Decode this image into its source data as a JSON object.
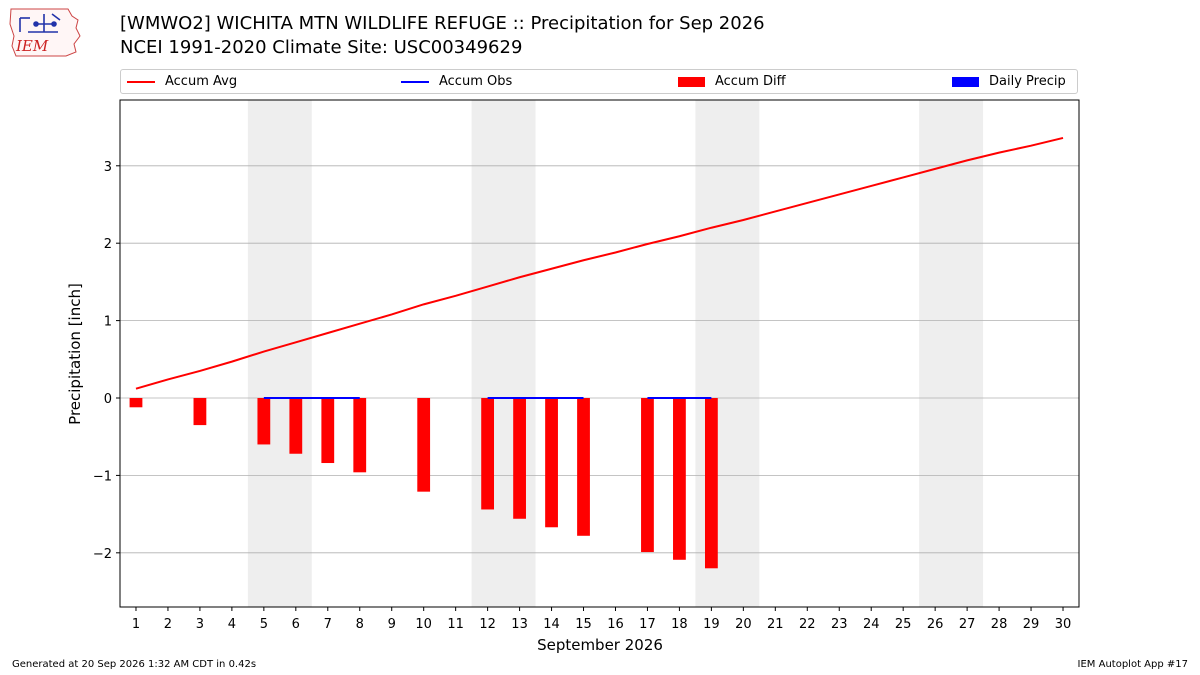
{
  "header": {
    "title_line1": "[WMWO2] WICHITA MTN WILDLIFE REFUGE :: Precipitation for Sep 2026",
    "title_line2": "NCEI 1991-2020 Climate Site: USC00349629"
  },
  "logo": {
    "text": "IEM",
    "icon": "iem-iowa-weather-logo"
  },
  "footer": {
    "generated": "Generated at 20 Sep 2026 1:32 AM CDT in 0.42s",
    "app": "IEM Autoplot App #17"
  },
  "colors": {
    "accum_avg": "#ff0000",
    "accum_obs": "#0000ff",
    "accum_diff": "#ff0000",
    "daily_precip": "#0000ff",
    "weekend_shade": "#eeeeee",
    "grid": "#b0b0b0"
  },
  "chart_data": {
    "type": "bar",
    "xlabel": "September 2026",
    "ylabel": "Precipitation [inch]",
    "xlim": [
      0.5,
      30.5
    ],
    "ylim": [
      -2.7,
      3.85
    ],
    "yticks": [
      -2,
      -1,
      0,
      1,
      2,
      3
    ],
    "grid": "horizontal",
    "legend_position": "top",
    "legend": [
      "Accum Avg",
      "Accum Obs",
      "Accum Diff",
      "Daily Precip"
    ],
    "weekends": [
      [
        5,
        6
      ],
      [
        12,
        13
      ],
      [
        19,
        20
      ],
      [
        26,
        27
      ]
    ],
    "days": [
      1,
      2,
      3,
      4,
      5,
      6,
      7,
      8,
      9,
      10,
      11,
      12,
      13,
      14,
      15,
      16,
      17,
      18,
      19,
      20,
      21,
      22,
      23,
      24,
      25,
      26,
      27,
      28,
      29,
      30
    ],
    "series": [
      {
        "name": "Accum Avg",
        "kind": "line",
        "x": [
          1,
          2,
          3,
          4,
          5,
          6,
          7,
          8,
          9,
          10,
          11,
          12,
          13,
          14,
          15,
          16,
          17,
          18,
          19,
          20,
          21,
          22,
          23,
          24,
          25,
          26,
          27,
          28,
          29,
          30
        ],
        "values": [
          0.12,
          0.24,
          0.35,
          0.47,
          0.6,
          0.72,
          0.84,
          0.96,
          1.08,
          1.21,
          1.32,
          1.44,
          1.56,
          1.67,
          1.78,
          1.88,
          1.99,
          2.09,
          2.2,
          2.3,
          2.41,
          2.52,
          2.63,
          2.74,
          2.85,
          2.96,
          3.07,
          3.17,
          3.26,
          3.36
        ]
      },
      {
        "name": "Accum Obs",
        "kind": "line",
        "segments": [
          {
            "x": [
              5,
              6,
              7,
              8
            ],
            "values": [
              0,
              0,
              0,
              0
            ]
          },
          {
            "x": [
              12,
              13,
              14,
              15
            ],
            "values": [
              0,
              0,
              0,
              0
            ]
          },
          {
            "x": [
              17,
              18,
              19
            ],
            "values": [
              0,
              0,
              0
            ]
          }
        ]
      },
      {
        "name": "Accum Diff",
        "kind": "bar",
        "x": [
          1,
          3,
          5,
          6,
          7,
          8,
          10,
          12,
          13,
          14,
          15,
          17,
          18,
          19
        ],
        "values": [
          -0.12,
          -0.35,
          -0.6,
          -0.72,
          -0.84,
          -0.96,
          -1.21,
          -1.44,
          -1.56,
          -1.67,
          -1.78,
          -1.99,
          -2.09,
          -2.2
        ]
      },
      {
        "name": "Daily Precip",
        "kind": "bar",
        "x": [],
        "values": []
      }
    ]
  }
}
